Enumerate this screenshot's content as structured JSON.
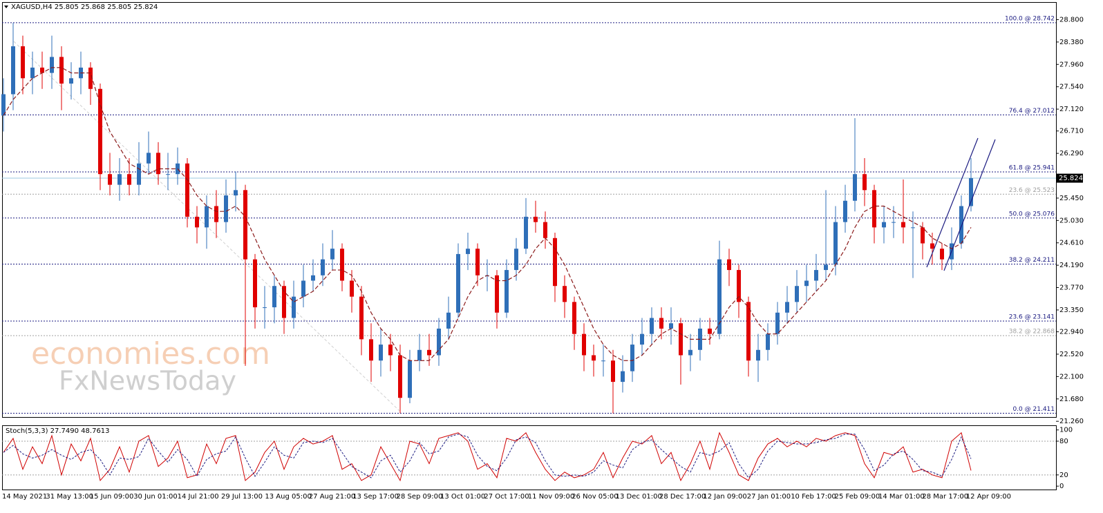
{
  "chart_data": [
    {
      "type": "candlestick",
      "title": "XAGUSD,H4  25.805 25.868 25.805 25.824",
      "up_color": "#2f6fb8",
      "down_color": "#e00000",
      "open": [
        27.0,
        27.4,
        28.3,
        27.7,
        27.9,
        27.8,
        28.1,
        27.6,
        27.7,
        27.9,
        27.5,
        25.9,
        25.7,
        25.9,
        25.7,
        26.1,
        26.3,
        25.9,
        25.9,
        26.1,
        25.1,
        24.9,
        25.3,
        25.0,
        25.5,
        25.6,
        24.3,
        23.4,
        23.4,
        23.8,
        23.2,
        23.6,
        23.9,
        24.0,
        24.3,
        24.5,
        23.9,
        23.6,
        22.8,
        22.4,
        22.7,
        22.5,
        21.7,
        22.4,
        22.6,
        22.5,
        23.0,
        23.3,
        24.4,
        24.5,
        24.0,
        24.0,
        23.3,
        24.1,
        24.5,
        25.1,
        25.0,
        24.7,
        23.8,
        23.5,
        22.9,
        22.5,
        22.4,
        22.4,
        22.0,
        22.2,
        22.7,
        22.9,
        23.2,
        23.0,
        23.1,
        22.5,
        22.6,
        23.0,
        22.9,
        24.3,
        24.1,
        23.5,
        22.4,
        22.6,
        22.9,
        23.3,
        23.5,
        23.8,
        23.9,
        24.1,
        24.2,
        25.0,
        25.4,
        25.9,
        25.6,
        24.9,
        25.0,
        25.0,
        24.9,
        24.9,
        24.6,
        24.5,
        24.3,
        24.6,
        25.3
      ],
      "high": [
        27.7,
        28.74,
        28.5,
        28.2,
        28.2,
        28.5,
        28.3,
        28.0,
        28.2,
        28.0,
        27.6,
        26.3,
        26.2,
        26.2,
        26.5,
        26.7,
        26.5,
        26.3,
        26.4,
        26.2,
        25.3,
        25.5,
        25.6,
        25.8,
        25.95,
        25.7,
        24.4,
        23.8,
        24.0,
        23.9,
        23.9,
        24.2,
        24.3,
        24.6,
        24.85,
        24.6,
        24.1,
        23.8,
        23.1,
        23.0,
        22.9,
        22.7,
        22.6,
        22.9,
        22.9,
        23.2,
        23.6,
        24.6,
        24.8,
        24.6,
        24.3,
        24.1,
        24.3,
        24.7,
        25.45,
        25.4,
        25.2,
        24.8,
        24.0,
        23.6,
        23.1,
        22.7,
        22.7,
        22.6,
        22.5,
        22.9,
        23.2,
        23.4,
        23.4,
        23.4,
        23.2,
        22.9,
        23.2,
        23.2,
        24.65,
        24.5,
        24.2,
        23.6,
        22.9,
        23.1,
        23.5,
        23.8,
        24.1,
        24.2,
        24.4,
        25.6,
        25.3,
        25.7,
        26.95,
        26.2,
        25.7,
        25.3,
        25.3,
        25.8,
        25.2,
        25.0,
        24.8,
        24.6,
        24.9,
        25.5,
        26.2
      ],
      "low": [
        26.7,
        27.1,
        27.4,
        27.4,
        27.5,
        27.5,
        27.1,
        27.3,
        27.4,
        27.2,
        25.6,
        25.5,
        25.4,
        25.5,
        25.5,
        25.9,
        25.7,
        25.6,
        25.7,
        24.9,
        24.6,
        24.5,
        24.7,
        24.8,
        25.2,
        22.3,
        23.0,
        23.0,
        23.1,
        22.9,
        23.0,
        23.4,
        23.7,
        23.8,
        24.1,
        23.7,
        23.3,
        22.5,
        22.0,
        22.1,
        22.2,
        21.41,
        21.6,
        22.2,
        22.3,
        22.3,
        22.8,
        23.2,
        24.1,
        23.8,
        23.7,
        23.0,
        23.2,
        23.9,
        24.4,
        24.8,
        24.5,
        23.5,
        23.2,
        22.6,
        22.2,
        22.1,
        22.1,
        21.41,
        21.8,
        22.0,
        22.5,
        22.7,
        22.8,
        22.7,
        21.95,
        22.2,
        22.4,
        22.7,
        22.8,
        23.8,
        23.2,
        22.1,
        22.0,
        22.4,
        22.7,
        23.1,
        23.3,
        23.5,
        23.7,
        23.9,
        24.0,
        24.8,
        25.2,
        25.3,
        24.6,
        24.6,
        24.7,
        24.6,
        23.95,
        24.3,
        24.2,
        24.1,
        24.1,
        24.5,
        25.2
      ],
      "close": [
        27.4,
        28.3,
        27.7,
        27.9,
        27.8,
        28.1,
        27.6,
        27.7,
        27.9,
        27.5,
        25.9,
        25.7,
        25.9,
        25.7,
        26.1,
        26.3,
        25.9,
        25.9,
        26.1,
        25.1,
        24.9,
        25.3,
        25.0,
        25.5,
        25.6,
        24.3,
        23.4,
        23.4,
        23.8,
        23.2,
        23.6,
        23.9,
        24.0,
        24.3,
        24.5,
        23.9,
        23.6,
        22.8,
        22.4,
        22.7,
        22.5,
        21.7,
        22.4,
        22.6,
        22.5,
        23.0,
        23.3,
        24.4,
        24.5,
        24.0,
        24.0,
        23.3,
        24.1,
        24.5,
        25.1,
        25.0,
        24.7,
        23.8,
        23.5,
        22.9,
        22.5,
        22.4,
        22.4,
        22.0,
        22.2,
        22.7,
        22.9,
        23.2,
        23.0,
        23.1,
        22.5,
        22.6,
        23.0,
        22.9,
        24.3,
        24.1,
        23.5,
        22.4,
        22.6,
        22.9,
        23.3,
        23.5,
        23.8,
        23.9,
        24.1,
        24.2,
        25.0,
        25.4,
        25.9,
        25.6,
        24.9,
        25.0,
        25.0,
        24.9,
        24.9,
        24.6,
        24.5,
        24.3,
        24.6,
        25.3,
        25.824
      ],
      "ma": {
        "color": "#8b1a1a",
        "values": [
          27.0,
          27.3,
          27.5,
          27.7,
          27.8,
          27.9,
          27.9,
          27.8,
          27.8,
          27.8,
          27.2,
          26.7,
          26.4,
          26.1,
          26.0,
          25.9,
          26.0,
          26.0,
          26.0,
          25.8,
          25.5,
          25.3,
          25.2,
          25.2,
          25.3,
          25.1,
          24.7,
          24.3,
          24.0,
          23.7,
          23.5,
          23.6,
          23.7,
          23.9,
          24.1,
          24.1,
          24.0,
          23.7,
          23.3,
          23.0,
          22.8,
          22.5,
          22.4,
          22.4,
          22.4,
          22.6,
          22.8,
          23.2,
          23.6,
          23.9,
          24.0,
          23.9,
          23.9,
          24.0,
          24.2,
          24.5,
          24.7,
          24.5,
          24.2,
          23.8,
          23.4,
          23.0,
          22.7,
          22.5,
          22.4,
          22.4,
          22.5,
          22.7,
          22.9,
          23.0,
          22.9,
          22.8,
          22.8,
          22.8,
          23.1,
          23.4,
          23.6,
          23.4,
          23.1,
          22.9,
          22.9,
          23.1,
          23.3,
          23.5,
          23.7,
          23.9,
          24.2,
          24.5,
          24.9,
          25.2,
          25.3,
          25.3,
          25.2,
          25.1,
          25.0,
          24.9,
          24.7,
          24.6,
          24.5,
          24.6,
          24.9
        ]
      },
      "ylim": [
        21.34,
        29.13
      ],
      "yticks": [
        {
          "value": 28.8,
          "label": "28.800"
        },
        {
          "value": 28.38,
          "label": "28.380"
        },
        {
          "value": 27.96,
          "label": "27.960"
        },
        {
          "value": 27.54,
          "label": "27.540"
        },
        {
          "value": 27.12,
          "label": "27.120"
        },
        {
          "value": 26.71,
          "label": "26.710"
        },
        {
          "value": 26.29,
          "label": "26.290"
        },
        {
          "value": 25.45,
          "label": "25.450"
        },
        {
          "value": 25.03,
          "label": "25.030"
        },
        {
          "value": 24.61,
          "label": "24.610"
        },
        {
          "value": 24.19,
          "label": "24.190"
        },
        {
          "value": 23.77,
          "label": "23.770"
        },
        {
          "value": 23.35,
          "label": "23.350"
        },
        {
          "value": 22.94,
          "label": "22.940"
        },
        {
          "value": 22.52,
          "label": "22.520"
        },
        {
          "value": 22.1,
          "label": "22.100"
        },
        {
          "value": 21.68,
          "label": "21.680"
        },
        {
          "value": 21.26,
          "label": "21.260"
        }
      ],
      "levels": [
        {
          "label": "100.0 @ 28.742",
          "value": 28.742,
          "color": "#1a1a80"
        },
        {
          "label": "76.4 @ 27.012",
          "value": 27.012,
          "color": "#1a1a80"
        },
        {
          "label": "61.8 @ 25.941",
          "value": 25.941,
          "color": "#1a1a80"
        },
        {
          "label": "23.6 @ 25.523",
          "value": 25.523,
          "color": "#a0a0a0"
        },
        {
          "label": "50.0 @ 25.076",
          "value": 25.076,
          "color": "#1a1a80"
        },
        {
          "label": "38.2 @ 24.211",
          "value": 24.211,
          "color": "#1a1a80"
        },
        {
          "label": "23.6 @ 23.141",
          "value": 23.141,
          "color": "#1a1a80"
        },
        {
          "label": "38.2 @ 22.868",
          "value": 22.868,
          "color": "#a0a0a0"
        },
        {
          "label": "0.0 @ 21.411",
          "value": 21.411,
          "color": "#1a1a80"
        }
      ],
      "last_price": 25.824,
      "time_labels": [
        "14 May 2021",
        "31 May 13:00",
        "15 Jun 09:00",
        "30 Jun 01:00",
        "14 Jul 21:00",
        "29 Jul 13:00",
        "13 Aug 05:00",
        "27 Aug 21:00",
        "13 Sep 17:00",
        "28 Sep 09:00",
        "13 Oct 01:00",
        "27 Oct 17:00",
        "11 Nov 09:00",
        "26 Nov 05:00",
        "13 Dec 01:00",
        "28 Dec 17:00",
        "12 Jan 09:00",
        "27 Jan 01:00",
        "10 Feb 17:00",
        "25 Feb 09:00",
        "14 Mar 01:00",
        "28 Mar 17:00",
        "12 Apr 09:00"
      ],
      "watermark": [
        "economies.com",
        "FxNewsToday"
      ]
    },
    {
      "type": "line",
      "title": "Stoch(5,3,3) 27.7490 48.7613",
      "series": [
        {
          "color": "#d00000",
          "values": [
            60,
            85,
            30,
            70,
            40,
            90,
            20,
            75,
            45,
            85,
            10,
            30,
            70,
            25,
            80,
            90,
            35,
            50,
            80,
            15,
            20,
            75,
            40,
            85,
            90,
            10,
            25,
            60,
            80,
            30,
            70,
            85,
            75,
            80,
            90,
            30,
            40,
            10,
            20,
            70,
            40,
            10,
            80,
            75,
            40,
            85,
            90,
            95,
            80,
            30,
            40,
            15,
            85,
            80,
            95,
            60,
            30,
            10,
            25,
            15,
            20,
            30,
            60,
            15,
            50,
            80,
            75,
            90,
            40,
            60,
            10,
            40,
            80,
            30,
            95,
            60,
            20,
            10,
            50,
            75,
            85,
            70,
            80,
            70,
            85,
            80,
            90,
            95,
            90,
            40,
            15,
            60,
            55,
            70,
            25,
            30,
            20,
            15,
            80,
            95,
            27.749
          ]
        },
        {
          "color": "#1a1a80",
          "values": [
            60,
            72.5,
            57.5,
            50,
            55,
            65,
            55,
            47.5,
            60,
            65,
            47.5,
            20,
            50,
            47.5,
            52.5,
            85,
            62.5,
            42.5,
            65,
            47.5,
            17.5,
            47.5,
            57.5,
            62.5,
            87.5,
            50,
            17.5,
            42.5,
            70,
            55,
            50,
            77.5,
            80,
            77.5,
            85,
            60,
            35,
            25,
            15,
            45,
            55,
            25,
            45,
            77.5,
            57.5,
            62.5,
            87.5,
            92.5,
            87.5,
            55,
            35,
            27.5,
            50,
            82.5,
            87.5,
            77.5,
            45,
            20,
            17.5,
            20,
            17.5,
            25,
            45,
            37.5,
            32.5,
            65,
            77.5,
            82.5,
            65,
            50,
            35,
            25,
            60,
            55,
            62.5,
            77.5,
            40,
            15,
            30,
            62.5,
            80,
            77.5,
            75,
            75,
            77.5,
            82.5,
            85,
            92.5,
            92.5,
            65,
            27.5,
            37.5,
            57.5,
            62.5,
            47.5,
            27.5,
            25,
            17.5,
            47.5,
            87.5,
            48.7613
          ]
        }
      ],
      "ylim": [
        -6,
        107
      ],
      "yticks": [
        100,
        80,
        20,
        0
      ],
      "levels": [
        80,
        20
      ]
    }
  ]
}
